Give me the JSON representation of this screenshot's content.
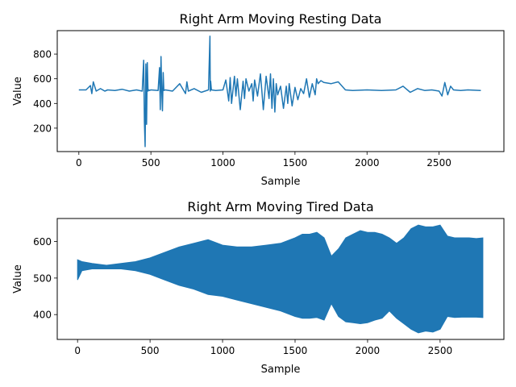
{
  "chart_data": [
    {
      "type": "line",
      "title": "Right Arm Moving Resting Data",
      "xlabel": "Sample",
      "ylabel": "Value",
      "xlim": [
        -150,
        2950
      ],
      "ylim": [
        10,
        990
      ],
      "xticks": [
        0,
        500,
        1000,
        1500,
        2000,
        2500
      ],
      "yticks": [
        200,
        400,
        600,
        800
      ],
      "color": "#1f77b4",
      "series": [
        {
          "x": [
            0,
            50,
            80,
            90,
            100,
            120,
            150,
            180,
            200,
            250,
            300,
            350,
            400,
            440,
            450,
            455,
            460,
            465,
            470,
            475,
            480,
            485,
            490,
            500,
            550,
            560,
            565,
            570,
            575,
            580,
            585,
            590,
            600,
            650,
            700,
            740,
            750,
            760,
            800,
            850,
            900,
            910,
            912,
            915,
            920,
            950,
            1000,
            1020,
            1040,
            1050,
            1060,
            1080,
            1090,
            1100,
            1120,
            1140,
            1150,
            1160,
            1180,
            1200,
            1210,
            1220,
            1240,
            1260,
            1270,
            1280,
            1300,
            1320,
            1330,
            1340,
            1350,
            1360,
            1370,
            1380,
            1400,
            1420,
            1440,
            1450,
            1460,
            1480,
            1500,
            1520,
            1540,
            1560,
            1580,
            1600,
            1620,
            1640,
            1650,
            1660,
            1680,
            1700,
            1750,
            1800,
            1850,
            1900,
            2000,
            2100,
            2200,
            2250,
            2300,
            2350,
            2400,
            2450,
            2500,
            2520,
            2540,
            2560,
            2580,
            2600,
            2650,
            2700,
            2790
          ],
          "y": [
            510,
            510,
            545,
            480,
            575,
            500,
            520,
            500,
            510,
            505,
            515,
            500,
            510,
            500,
            750,
            250,
            50,
            720,
            230,
            730,
            500,
            510,
            505,
            510,
            505,
            690,
            350,
            780,
            500,
            340,
            650,
            505,
            510,
            500,
            560,
            480,
            575,
            500,
            520,
            490,
            510,
            945,
            500,
            580,
            510,
            505,
            510,
            590,
            420,
            610,
            400,
            620,
            460,
            600,
            350,
            580,
            440,
            600,
            500,
            560,
            420,
            590,
            460,
            640,
            500,
            350,
            620,
            440,
            640,
            360,
            600,
            330,
            560,
            470,
            540,
            360,
            540,
            400,
            560,
            380,
            530,
            430,
            520,
            480,
            600,
            450,
            560,
            470,
            600,
            560,
            585,
            570,
            560,
            575,
            510,
            505,
            510,
            505,
            510,
            540,
            490,
            520,
            505,
            510,
            500,
            460,
            570,
            470,
            540,
            510,
            505,
            510,
            505
          ]
        }
      ]
    },
    {
      "type": "area",
      "title": "Right Arm Moving Tired Data",
      "xlabel": "Sample",
      "ylabel": "Value",
      "xlim": [
        -140,
        2940
      ],
      "ylim": [
        332,
        663
      ],
      "xticks": [
        0,
        500,
        1000,
        1500,
        2000,
        2500
      ],
      "yticks": [
        400,
        500,
        600
      ],
      "color": "#1f77b4",
      "series": [
        {
          "x": [
            0,
            30,
            100,
            200,
            300,
            400,
            500,
            600,
            700,
            800,
            900,
            1000,
            1100,
            1200,
            1300,
            1400,
            1500,
            1550,
            1600,
            1650,
            1700,
            1750,
            1800,
            1850,
            1900,
            1950,
            2000,
            2050,
            2100,
            2150,
            2200,
            2250,
            2300,
            2350,
            2400,
            2450,
            2500,
            2550,
            2600,
            2650,
            2700,
            2750,
            2795
          ],
          "upper": [
            550,
            545,
            540,
            535,
            540,
            545,
            555,
            570,
            585,
            595,
            605,
            590,
            585,
            585,
            590,
            595,
            610,
            620,
            620,
            625,
            610,
            560,
            580,
            610,
            620,
            630,
            625,
            625,
            620,
            610,
            595,
            610,
            635,
            645,
            640,
            640,
            645,
            615,
            610,
            610,
            610,
            608,
            610
          ],
          "lower": [
            495,
            520,
            525,
            525,
            525,
            520,
            510,
            495,
            480,
            470,
            455,
            450,
            440,
            430,
            420,
            410,
            395,
            390,
            390,
            392,
            385,
            430,
            395,
            380,
            378,
            375,
            378,
            385,
            390,
            410,
            390,
            375,
            360,
            350,
            355,
            352,
            360,
            395,
            392,
            393,
            393,
            393,
            392
          ]
        }
      ]
    }
  ]
}
